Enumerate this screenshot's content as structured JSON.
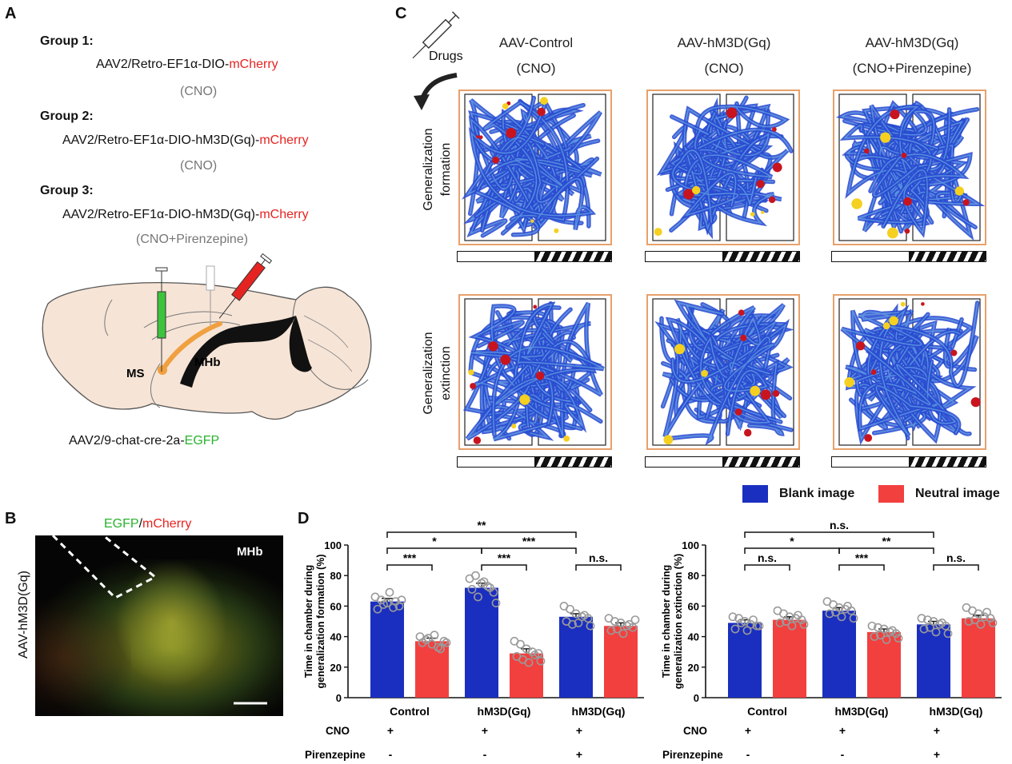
{
  "panels": {
    "a": "A",
    "b": "B",
    "c": "C",
    "d": "D"
  },
  "panelA": {
    "groups": [
      {
        "title": "Group 1:",
        "prefix": "AAV2/Retro-EF1α-DIO-",
        "suffix": "mCherry",
        "treatment": "(CNO)"
      },
      {
        "title": "Group 2:",
        "prefix": "AAV2/Retro-EF1α-DIO-hM3D(Gq)-",
        "suffix": "mCherry",
        "treatment": "(CNO)"
      },
      {
        "title": "Group 3:",
        "prefix": "AAV2/Retro-EF1α-DIO-hM3D(Gq)-",
        "suffix": "mCherry",
        "treatment": "(CNO+Pirenzepine)"
      }
    ],
    "brain_labels": {
      "ms": "MS",
      "mhb": "MHb"
    },
    "virus_prefix": "AAV2/9-chat-cre-2a-",
    "virus_suffix": "EGFP"
  },
  "panelB": {
    "title_green": "EGFP",
    "title_sep": "/",
    "title_red": "mCherry",
    "region": "MHb",
    "side_label": "AAV-hM3D(Gq)"
  },
  "panelC": {
    "drugs_label": "Drugs",
    "columns": [
      {
        "line1": "AAV-Control",
        "line2": "(CNO)"
      },
      {
        "line1": "AAV-hM3D(Gq)",
        "line2": "(CNO)"
      },
      {
        "line1": "AAV-hM3D(Gq)",
        "line2": "(CNO+Pirenzepine)"
      }
    ],
    "rows": [
      {
        "line1": "Generalization",
        "line2": "formation"
      },
      {
        "line1": "Generalization",
        "line2": "extinction"
      }
    ]
  },
  "legend": {
    "items": [
      {
        "label": "Blank image",
        "color": "#1a2fbf"
      },
      {
        "label": "Neutral image",
        "color": "#f2403f"
      }
    ]
  },
  "chart_data": [
    {
      "type": "bar",
      "ylabel": "Time in chamber during generalization formation (%)",
      "ylim": [
        0,
        100
      ],
      "yticks": [
        0,
        20,
        40,
        60,
        80,
        100
      ],
      "groups": [
        "Control",
        "hM3D(Gq)",
        "hM3D(Gq)"
      ],
      "series": [
        {
          "name": "Blank image",
          "values": [
            63,
            72,
            53
          ]
        },
        {
          "name": "Neutral image",
          "values": [
            37,
            29,
            47
          ]
        }
      ],
      "errors": [
        [
          2,
          3,
          2
        ],
        [
          2,
          3,
          2
        ]
      ],
      "points": [
        [
          [
            66,
            64,
            62,
            59,
            60,
            58,
            61,
            69,
            63,
            64
          ],
          [
            40,
            38,
            35,
            33,
            37,
            36,
            39,
            41,
            32,
            36
          ]
        ],
        [
          [
            78,
            80,
            75,
            73,
            69,
            71,
            66,
            76,
            72,
            62
          ],
          [
            37,
            35,
            32,
            30,
            29,
            27,
            25,
            23,
            28,
            24
          ]
        ],
        [
          [
            60,
            58,
            55,
            53,
            52,
            50,
            48,
            49,
            54,
            47
          ],
          [
            52,
            50,
            49,
            47,
            46,
            44,
            45,
            42,
            48,
            51
          ]
        ]
      ],
      "comparisons": [
        {
          "label": "***"
        },
        {
          "label": "***"
        },
        {
          "label": "n.s."
        },
        {
          "label": "*"
        },
        {
          "label": "***"
        },
        {
          "label": "**"
        }
      ],
      "row_labels": [
        {
          "name": "CNO",
          "values": [
            "+",
            "+",
            "+"
          ]
        },
        {
          "name": "Pirenzepine",
          "values": [
            "-",
            "-",
            "+"
          ]
        }
      ]
    },
    {
      "type": "bar",
      "ylabel": "Time in chamber during generalization extinction (%)",
      "ylim": [
        0,
        100
      ],
      "yticks": [
        0,
        20,
        40,
        60,
        80,
        100
      ],
      "groups": [
        "Control",
        "hM3D(Gq)",
        "hM3D(Gq)"
      ],
      "series": [
        {
          "name": "Blank image",
          "values": [
            49,
            57,
            48
          ]
        },
        {
          "name": "Neutral image",
          "values": [
            51,
            43,
            52
          ]
        }
      ],
      "errors": [
        [
          2,
          2,
          2
        ],
        [
          2,
          2,
          2
        ]
      ],
      "points": [
        [
          [
            53,
            52,
            50,
            48,
            47,
            45,
            49,
            44,
            51,
            47
          ],
          [
            57,
            55,
            53,
            52,
            51,
            49,
            50,
            47,
            54,
            48
          ]
        ],
        [
          [
            63,
            61,
            59,
            58,
            57,
            55,
            56,
            53,
            60,
            52
          ],
          [
            47,
            46,
            45,
            43,
            42,
            40,
            41,
            38,
            44,
            39
          ]
        ],
        [
          [
            52,
            51,
            50,
            48,
            47,
            45,
            46,
            43,
            49,
            42
          ],
          [
            59,
            57,
            55,
            53,
            52,
            50,
            51,
            48,
            56,
            49
          ]
        ]
      ],
      "comparisons": [
        {
          "label": "n.s."
        },
        {
          "label": "***"
        },
        {
          "label": "n.s."
        },
        {
          "label": "*"
        },
        {
          "label": "**"
        },
        {
          "label": "n.s."
        }
      ],
      "row_labels": [
        {
          "name": "CNO",
          "values": [
            "+",
            "+",
            "+"
          ]
        },
        {
          "name": "Pirenzepine",
          "values": [
            "-",
            "-",
            "+"
          ]
        }
      ]
    }
  ]
}
